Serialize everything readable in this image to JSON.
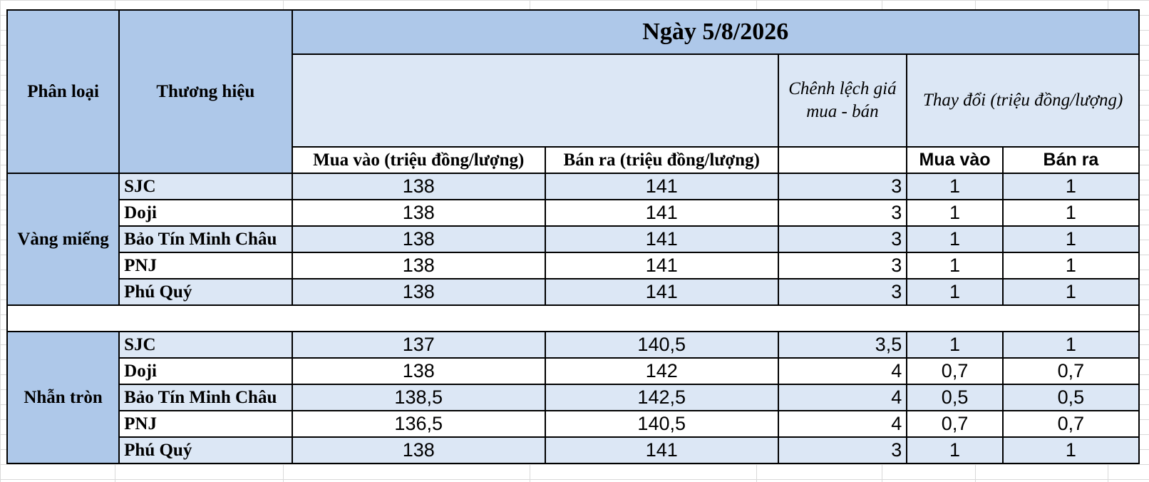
{
  "header": {
    "col_category": "Phân loại",
    "col_brand": "Thương hiệu",
    "date_title": "Ngày 5/8/2026",
    "spread_label": "Chênh lệch giá mua - bán",
    "change_label": "Thay đổi (triệu đồng/lượng)",
    "buy_label": "Mua vào (triệu đồng/lượng)",
    "sell_label": "Bán ra (triệu đồng/lượng)",
    "change_buy_label": "Mua vào",
    "change_sell_label": "Bán ra"
  },
  "groups": [
    {
      "name": "Vàng miếng",
      "rows": [
        {
          "brand": "SJC",
          "buy": "138",
          "sell": "141",
          "spread": "3",
          "change_buy": "1",
          "change_sell": "1"
        },
        {
          "brand": "Doji",
          "buy": "138",
          "sell": "141",
          "spread": "3",
          "change_buy": "1",
          "change_sell": "1"
        },
        {
          "brand": "Bảo Tín Minh Châu",
          "buy": "138",
          "sell": "141",
          "spread": "3",
          "change_buy": "1",
          "change_sell": "1"
        },
        {
          "brand": "PNJ",
          "buy": "138",
          "sell": "141",
          "spread": "3",
          "change_buy": "1",
          "change_sell": "1"
        },
        {
          "brand": "Phú Quý",
          "buy": "138",
          "sell": "141",
          "spread": "3",
          "change_buy": "1",
          "change_sell": "1"
        }
      ]
    },
    {
      "name": "Nhẫn tròn",
      "rows": [
        {
          "brand": "SJC",
          "buy": "137",
          "sell": "140,5",
          "spread": "3,5",
          "change_buy": "1",
          "change_sell": "1"
        },
        {
          "brand": "Doji",
          "buy": "138",
          "sell": "142",
          "spread": "4",
          "change_buy": "0,7",
          "change_sell": "0,7"
        },
        {
          "brand": "Bảo Tín Minh Châu",
          "buy": "138,5",
          "sell": "142,5",
          "spread": "4",
          "change_buy": "0,5",
          "change_sell": "0,5"
        },
        {
          "brand": "PNJ",
          "buy": "136,5",
          "sell": "140,5",
          "spread": "4",
          "change_buy": "0,7",
          "change_sell": "0,7"
        },
        {
          "brand": "Phú Quý",
          "buy": "138",
          "sell": "141",
          "spread": "3",
          "change_buy": "1",
          "change_sell": "1"
        }
      ]
    }
  ],
  "colors": {
    "header_dark": "#aec8e9",
    "header_light": "#dce7f5",
    "row_blue": "#dce7f5",
    "row_white": "#ffffff",
    "gridline": "#d9d9d9"
  }
}
